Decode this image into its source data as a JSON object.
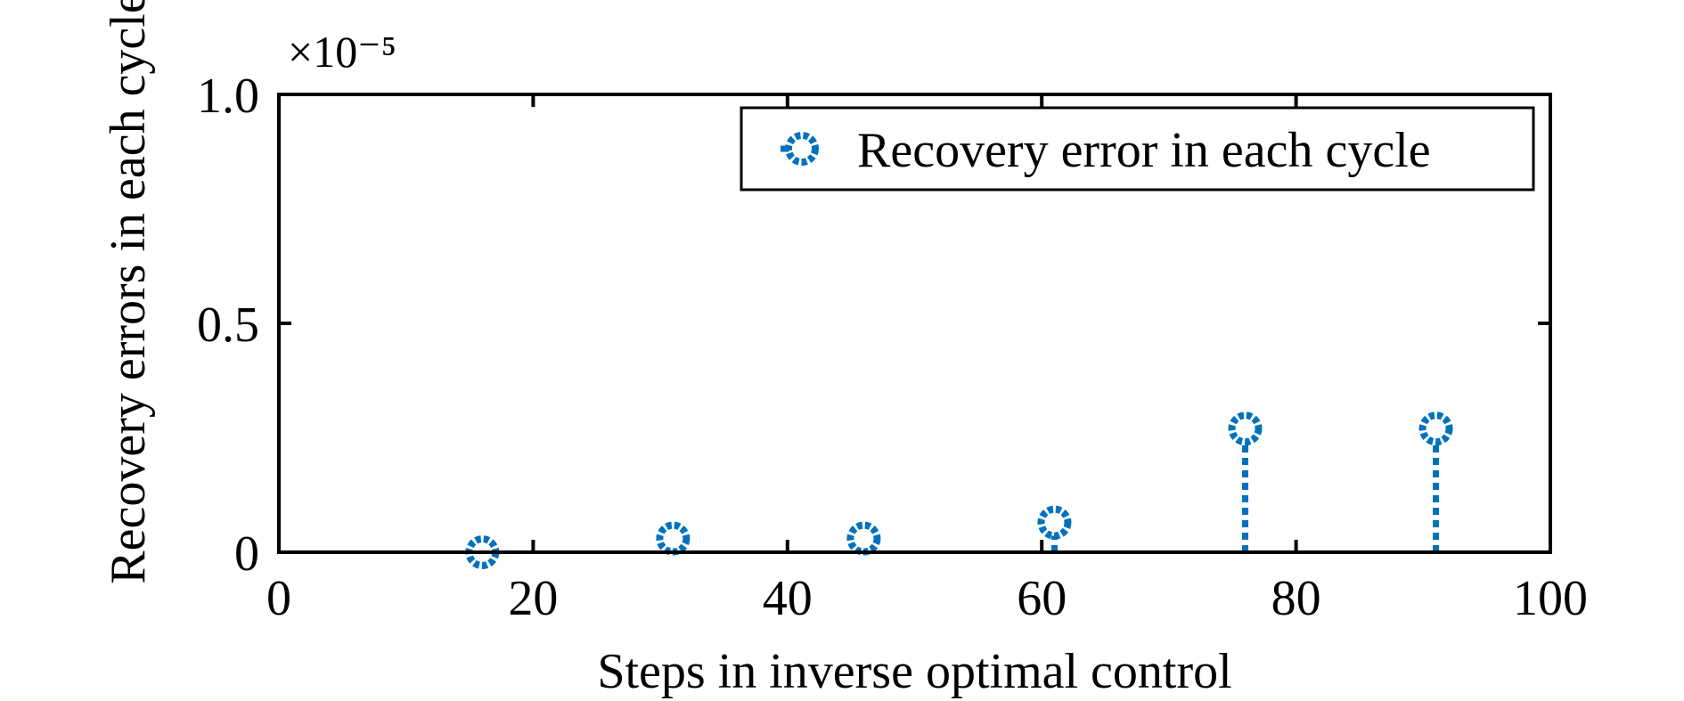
{
  "chart_data": {
    "type": "stem",
    "xlabel": "Steps in inverse optimal control",
    "ylabel": "Recovery errors in each cycle",
    "y_exponent_label": "×10⁻⁵",
    "xlim": [
      0,
      100
    ],
    "ylim": [
      0,
      1.0
    ],
    "x_ticks": [
      0,
      20,
      40,
      60,
      80,
      100
    ],
    "x_tick_labels": [
      "0",
      "20",
      "40",
      "60",
      "80",
      "100"
    ],
    "y_ticks": [
      0,
      0.5,
      1.0
    ],
    "y_tick_labels": [
      "0",
      "0.5",
      "1.0"
    ],
    "legend_position": "top-right",
    "grid": false,
    "series": [
      {
        "name": "Recovery error in each cycle",
        "color": "#0072BD",
        "marker": "circle",
        "line_style": "dotted",
        "x": [
          16,
          31,
          46,
          61,
          76,
          91
        ],
        "y": [
          0.0,
          0.03,
          0.03,
          0.065,
          0.27,
          0.27
        ]
      }
    ]
  }
}
